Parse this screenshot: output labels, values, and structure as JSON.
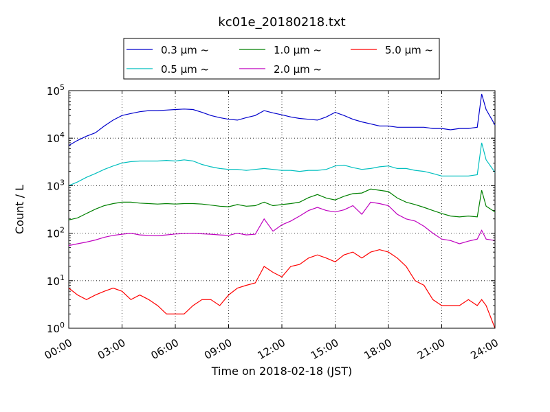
{
  "chart_data": {
    "type": "line",
    "title": "kc01e_20180218.txt",
    "xlabel": "Time on 2018-02-18 (JST)",
    "ylabel": "Count / L",
    "yscale": "log",
    "xlim": [
      "00:00",
      "24:00"
    ],
    "ylim": [
      1,
      100000
    ],
    "grid": true,
    "legend_position": "top",
    "x_ticks": [
      "00:00",
      "03:00",
      "06:00",
      "09:00",
      "12:00",
      "15:00",
      "18:00",
      "21:00",
      "24:00"
    ],
    "y_ticks": [
      {
        "base": "10",
        "exp": "0",
        "value": 1
      },
      {
        "base": "10",
        "exp": "1",
        "value": 10
      },
      {
        "base": "10",
        "exp": "2",
        "value": 100
      },
      {
        "base": "10",
        "exp": "3",
        "value": 1000
      },
      {
        "base": "10",
        "exp": "4",
        "value": 10000
      },
      {
        "base": "10",
        "exp": "5",
        "value": 100000
      }
    ],
    "x": [
      "00:00",
      "00:30",
      "01:00",
      "01:30",
      "02:00",
      "02:30",
      "03:00",
      "03:30",
      "04:00",
      "04:30",
      "05:00",
      "05:30",
      "06:00",
      "06:30",
      "07:00",
      "07:30",
      "08:00",
      "08:30",
      "09:00",
      "09:30",
      "10:00",
      "10:30",
      "11:00",
      "11:30",
      "12:00",
      "12:30",
      "13:00",
      "13:30",
      "14:00",
      "14:30",
      "15:00",
      "15:30",
      "16:00",
      "16:30",
      "17:00",
      "17:30",
      "18:00",
      "18:30",
      "19:00",
      "19:30",
      "20:00",
      "20:30",
      "21:00",
      "21:30",
      "22:00",
      "22:30",
      "23:00",
      "23:15",
      "23:30",
      "24:00"
    ],
    "series": [
      {
        "name": "0.3 μm ~",
        "color": "#0000cc",
        "values": [
          7000,
          9000,
          11000,
          13000,
          18000,
          24000,
          30000,
          33000,
          36000,
          38000,
          38000,
          39000,
          40000,
          41000,
          40000,
          35000,
          30000,
          27000,
          25000,
          24000,
          27000,
          30000,
          38000,
          34000,
          31000,
          28000,
          26000,
          25000,
          24000,
          28000,
          35000,
          30000,
          25000,
          22000,
          20000,
          18000,
          18000,
          17000,
          17000,
          17000,
          17000,
          16000,
          16000,
          15000,
          16000,
          16000,
          17000,
          85000,
          40000,
          19000
        ]
      },
      {
        "name": "0.5 μm ~",
        "color": "#00bfbf",
        "values": [
          1000,
          1200,
          1500,
          1800,
          2200,
          2600,
          3000,
          3200,
          3300,
          3300,
          3300,
          3400,
          3300,
          3500,
          3300,
          2800,
          2500,
          2300,
          2200,
          2200,
          2100,
          2200,
          2300,
          2200,
          2100,
          2100,
          2000,
          2100,
          2100,
          2200,
          2600,
          2700,
          2400,
          2200,
          2300,
          2500,
          2600,
          2300,
          2300,
          2100,
          2000,
          1800,
          1600,
          1600,
          1600,
          1600,
          1700,
          8000,
          3500,
          1900
        ]
      },
      {
        "name": "2.0 μm ~",
        "color": "#bf00bf",
        "values": [
          55,
          60,
          65,
          72,
          82,
          90,
          95,
          100,
          92,
          90,
          88,
          92,
          96,
          98,
          100,
          97,
          95,
          92,
          90,
          100,
          92,
          95,
          200,
          110,
          150,
          180,
          230,
          300,
          350,
          300,
          280,
          310,
          380,
          250,
          450,
          420,
          380,
          250,
          200,
          180,
          140,
          100,
          75,
          70,
          60,
          68,
          75,
          115,
          75,
          70
        ]
      },
      {
        "name": "1.0 μm ~",
        "color": "#008000",
        "values": [
          190,
          210,
          260,
          320,
          380,
          420,
          450,
          450,
          430,
          420,
          410,
          420,
          410,
          420,
          420,
          410,
          390,
          370,
          360,
          400,
          370,
          380,
          450,
          380,
          400,
          420,
          450,
          560,
          650,
          550,
          500,
          600,
          680,
          700,
          850,
          800,
          750,
          550,
          450,
          400,
          350,
          300,
          260,
          230,
          220,
          230,
          220,
          800,
          370,
          280
        ]
      },
      {
        "name": "5.0 μm ~",
        "color": "#ff0000",
        "values": [
          7,
          5,
          4,
          5,
          6,
          7,
          6,
          4,
          5,
          4,
          3,
          2,
          2,
          2,
          3,
          4,
          4,
          3,
          5,
          7,
          8,
          9,
          20,
          15,
          12,
          20,
          22,
          30,
          35,
          30,
          25,
          35,
          40,
          30,
          40,
          45,
          40,
          30,
          20,
          10,
          8,
          4,
          3,
          3,
          3,
          4,
          3,
          4,
          3,
          1
        ]
      }
    ]
  }
}
